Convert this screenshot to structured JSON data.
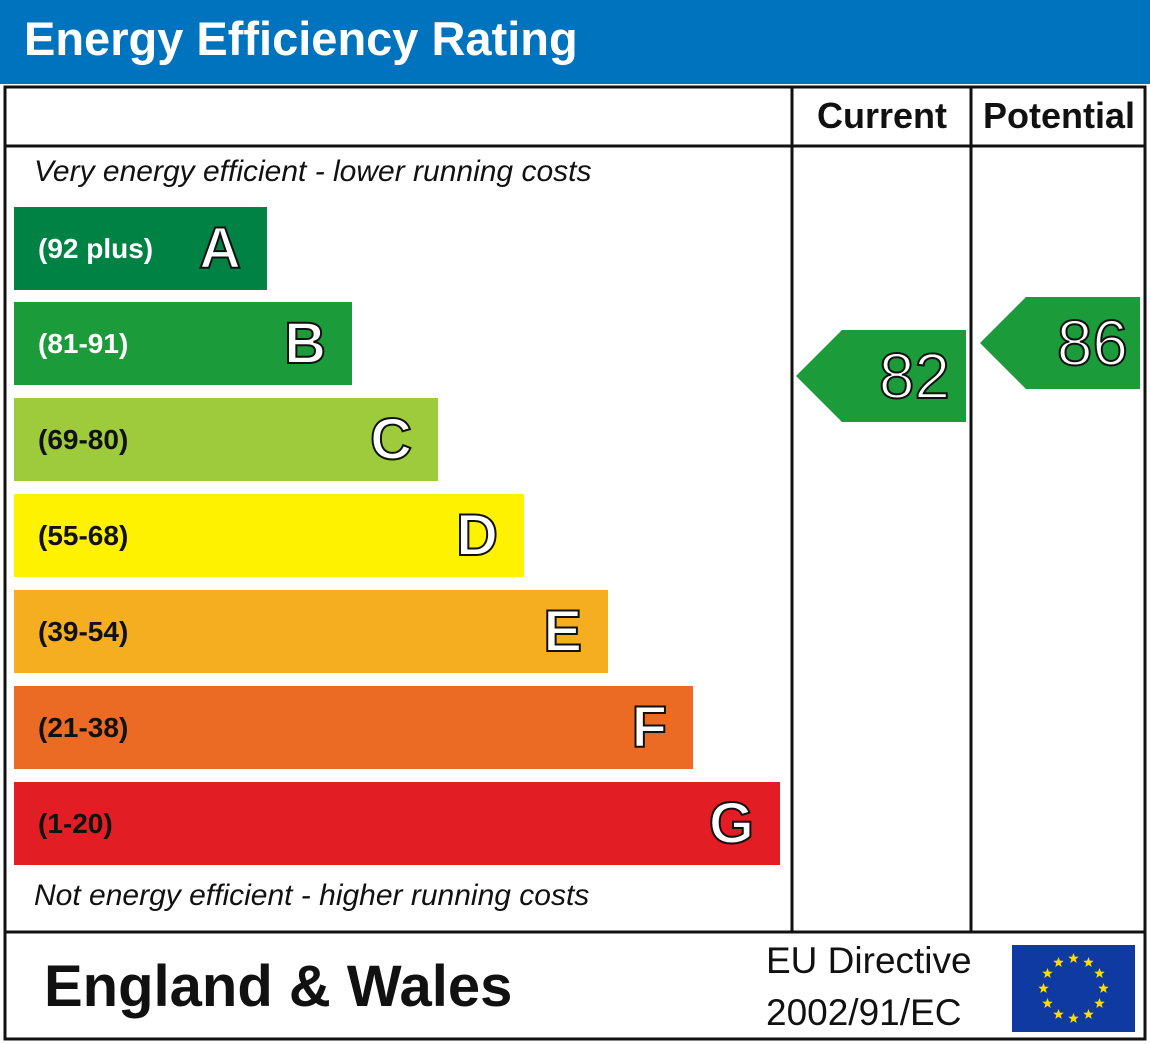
{
  "header": {
    "title": "Energy Efficiency Rating"
  },
  "columns": {
    "current": "Current",
    "potential": "Potential"
  },
  "notes": {
    "top": "Very energy efficient - lower running costs",
    "bottom": "Not energy efficient - higher running costs"
  },
  "footer": {
    "region": "England & Wales",
    "directive_line1": "EU Directive",
    "directive_line2": "2002/91/EC",
    "flag_icon": "eu-flag-icon"
  },
  "colors": {
    "header": "#0073be",
    "A": "#008244",
    "B": "#1b9b3a",
    "C": "#9dcb3b",
    "D": "#fff200",
    "E": "#f6ae21",
    "F": "#ec6b24",
    "G": "#e31d24",
    "flag": "#0f3aa1",
    "flag_star": "#ffdd00"
  },
  "chart_data": {
    "type": "bar",
    "title": "Energy Efficiency Rating",
    "categories": [
      "A",
      "B",
      "C",
      "D",
      "E",
      "F",
      "G"
    ],
    "bands": [
      {
        "letter": "A",
        "range": "(92 plus)",
        "min": 92,
        "max": 100
      },
      {
        "letter": "B",
        "range": "(81-91)",
        "min": 81,
        "max": 91
      },
      {
        "letter": "C",
        "range": "(69-80)",
        "min": 69,
        "max": 80
      },
      {
        "letter": "D",
        "range": "(55-68)",
        "min": 55,
        "max": 68
      },
      {
        "letter": "E",
        "range": "(39-54)",
        "min": 39,
        "max": 54
      },
      {
        "letter": "F",
        "range": "(21-38)",
        "min": 21,
        "max": 38
      },
      {
        "letter": "G",
        "range": "(1-20)",
        "min": 1,
        "max": 20
      }
    ],
    "current": {
      "value": 82,
      "band": "B"
    },
    "potential": {
      "value": 86,
      "band": "B"
    }
  }
}
